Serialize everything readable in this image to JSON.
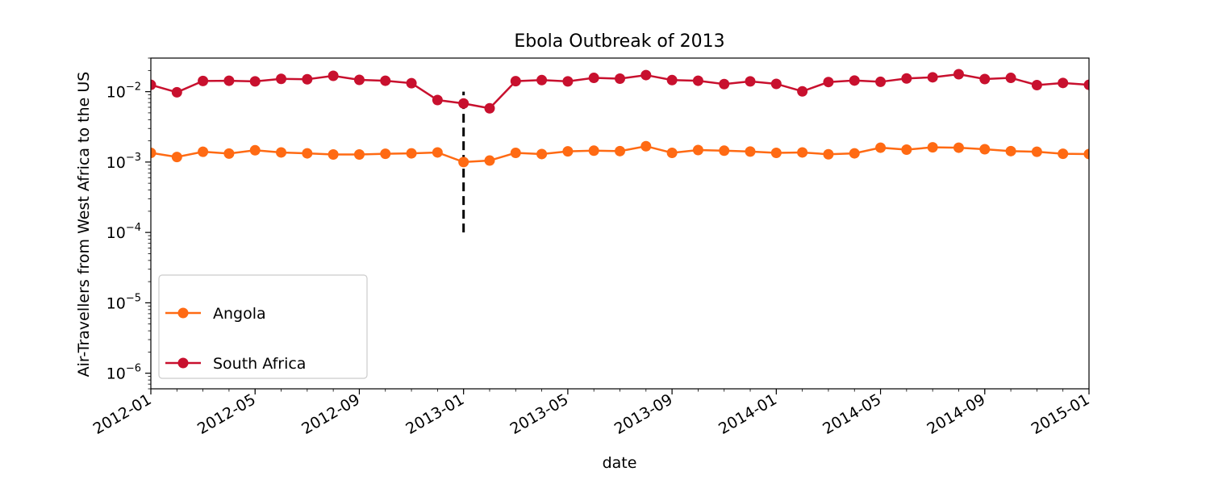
{
  "chart_data": {
    "type": "line",
    "title": "Ebola Outbreak of 2013",
    "xlabel": "date",
    "ylabel": "Air-Travellers from West Africa to the US",
    "yscale": "log",
    "ylim": [
      6e-07,
      0.03
    ],
    "xlim": [
      "2012-01",
      "2015-01"
    ],
    "x": [
      "2012-01",
      "2012-02",
      "2012-03",
      "2012-04",
      "2012-05",
      "2012-06",
      "2012-07",
      "2012-08",
      "2012-09",
      "2012-10",
      "2012-11",
      "2012-12",
      "2013-01",
      "2013-02",
      "2013-03",
      "2013-04",
      "2013-05",
      "2013-06",
      "2013-07",
      "2013-08",
      "2013-09",
      "2013-10",
      "2013-11",
      "2013-12",
      "2014-01",
      "2014-02",
      "2014-03",
      "2014-04",
      "2014-05",
      "2014-06",
      "2014-07",
      "2014-08",
      "2014-09",
      "2014-10",
      "2014-11",
      "2014-12",
      "2015-01"
    ],
    "x_ticks": [
      "2012-01",
      "2012-05",
      "2012-09",
      "2013-01",
      "2013-05",
      "2013-09",
      "2014-01",
      "2014-05",
      "2014-09",
      "2015-01"
    ],
    "y_ticks": [
      {
        "value": 1e-06,
        "base": "10",
        "exp": "−6"
      },
      {
        "value": 1e-05,
        "base": "10",
        "exp": "−5"
      },
      {
        "value": 0.0001,
        "base": "10",
        "exp": "−4"
      },
      {
        "value": 0.001,
        "base": "10",
        "exp": "−3"
      },
      {
        "value": 0.01,
        "base": "10",
        "exp": "−2"
      }
    ],
    "series": [
      {
        "name": "Angola",
        "color": "#ff6a13",
        "values": [
          0.00135,
          0.00118,
          0.0014,
          0.00132,
          0.00147,
          0.00137,
          0.00133,
          0.00128,
          0.00128,
          0.00131,
          0.00133,
          0.00137,
          0.001,
          0.00105,
          0.00135,
          0.0013,
          0.00142,
          0.00145,
          0.00143,
          0.00168,
          0.00135,
          0.00148,
          0.00145,
          0.00141,
          0.00135,
          0.00137,
          0.00129,
          0.00133,
          0.0016,
          0.0015,
          0.00162,
          0.0016,
          0.00152,
          0.00143,
          0.0014,
          0.00131,
          0.0013
        ]
      },
      {
        "name": "South Africa",
        "color": "#c8102e",
        "values": [
          0.0125,
          0.0098,
          0.0142,
          0.0143,
          0.014,
          0.0152,
          0.015,
          0.0168,
          0.0147,
          0.0143,
          0.0132,
          0.0076,
          0.0068,
          0.0058,
          0.0141,
          0.0146,
          0.014,
          0.0157,
          0.0153,
          0.0172,
          0.0146,
          0.0143,
          0.0128,
          0.014,
          0.0129,
          0.0101,
          0.0137,
          0.0144,
          0.0138,
          0.0154,
          0.016,
          0.0177,
          0.0151,
          0.0157,
          0.0124,
          0.0133,
          0.0125
        ]
      }
    ],
    "annotation": {
      "style": "dashed vertical line",
      "x": "2013-01",
      "y_from": 0.0001,
      "y_to": 0.01,
      "color": "#000000"
    },
    "legend": {
      "placement": "lower-left"
    },
    "grid": false
  }
}
